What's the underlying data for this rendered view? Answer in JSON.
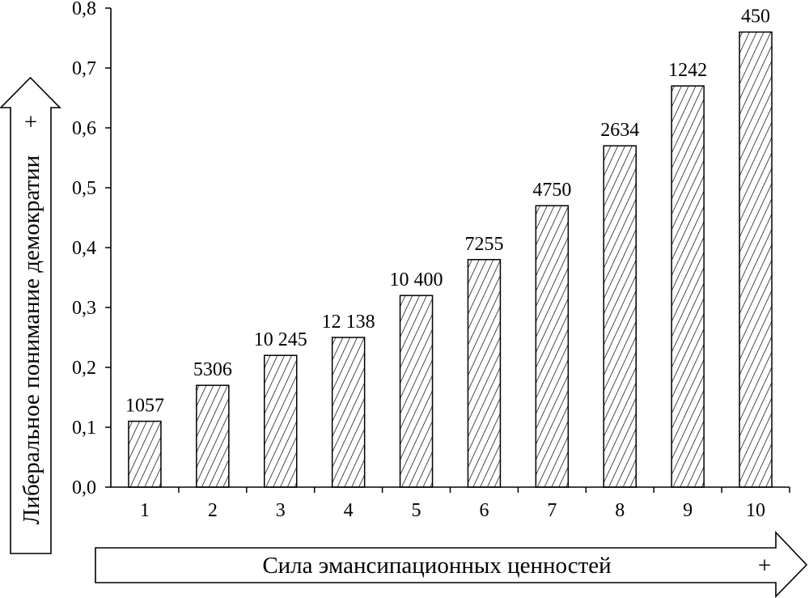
{
  "chart_data": {
    "type": "bar",
    "xlabel": "Сила эмансипационных ценностей",
    "ylabel": "Либеральное понимание демократии",
    "categories": [
      "1",
      "2",
      "3",
      "4",
      "5",
      "6",
      "7",
      "8",
      "9",
      "10"
    ],
    "values": [
      0.11,
      0.17,
      0.22,
      0.25,
      0.32,
      0.38,
      0.47,
      0.57,
      0.67,
      0.76
    ],
    "data_labels": [
      "1057",
      "5306",
      "10 245",
      "12 138",
      "10 400",
      "7255",
      "4750",
      "2634",
      "1242",
      "450"
    ],
    "ylim": [
      0,
      0.8
    ],
    "yticks": [
      0,
      0.1,
      0.2,
      0.3,
      0.4,
      0.5,
      0.6,
      0.7,
      0.8
    ],
    "ytick_labels": [
      "0,0",
      "0,1",
      "0,2",
      "0,3",
      "0,4",
      "0,5",
      "0,6",
      "0,7",
      "0,8"
    ],
    "grid": false
  },
  "axis_arrows": {
    "y_sign": "+",
    "x_sign": "+"
  },
  "colors": {
    "ink": "#000000",
    "background": "#ffffff"
  }
}
